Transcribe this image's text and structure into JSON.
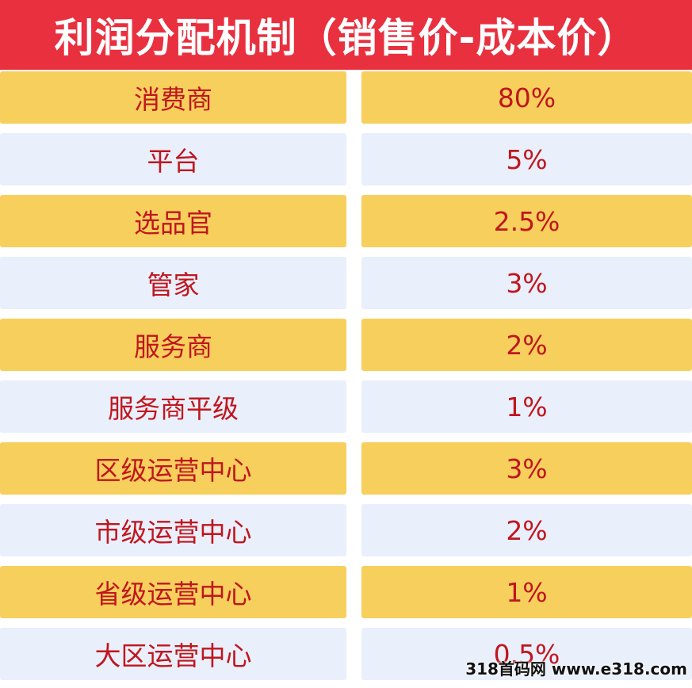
{
  "title": "利润分配机制（销售价-成本价）",
  "rows": [
    {
      "role": "消费商",
      "share": "80%"
    },
    {
      "role": "平台",
      "share": "5%"
    },
    {
      "role": "选品官",
      "share": "2.5%"
    },
    {
      "role": "管家",
      "share": "3%"
    },
    {
      "role": "服务商",
      "share": "2%"
    },
    {
      "role": "服务商平级",
      "share": "1%"
    },
    {
      "role": "区级运营中心",
      "share": "3%"
    },
    {
      "role": "市级运营中心",
      "share": "2%"
    },
    {
      "role": "省级运营中心",
      "share": "1%"
    },
    {
      "role": "大区运营中心",
      "share": "0.5%"
    }
  ],
  "watermark": "318首码网 www.e318.com",
  "colors": {
    "title_background": "#e8303f",
    "title_text": "#ffffff",
    "row_gold": "#f7cf5c",
    "row_blue": "#e9effb",
    "cell_text": "#c0161e"
  }
}
